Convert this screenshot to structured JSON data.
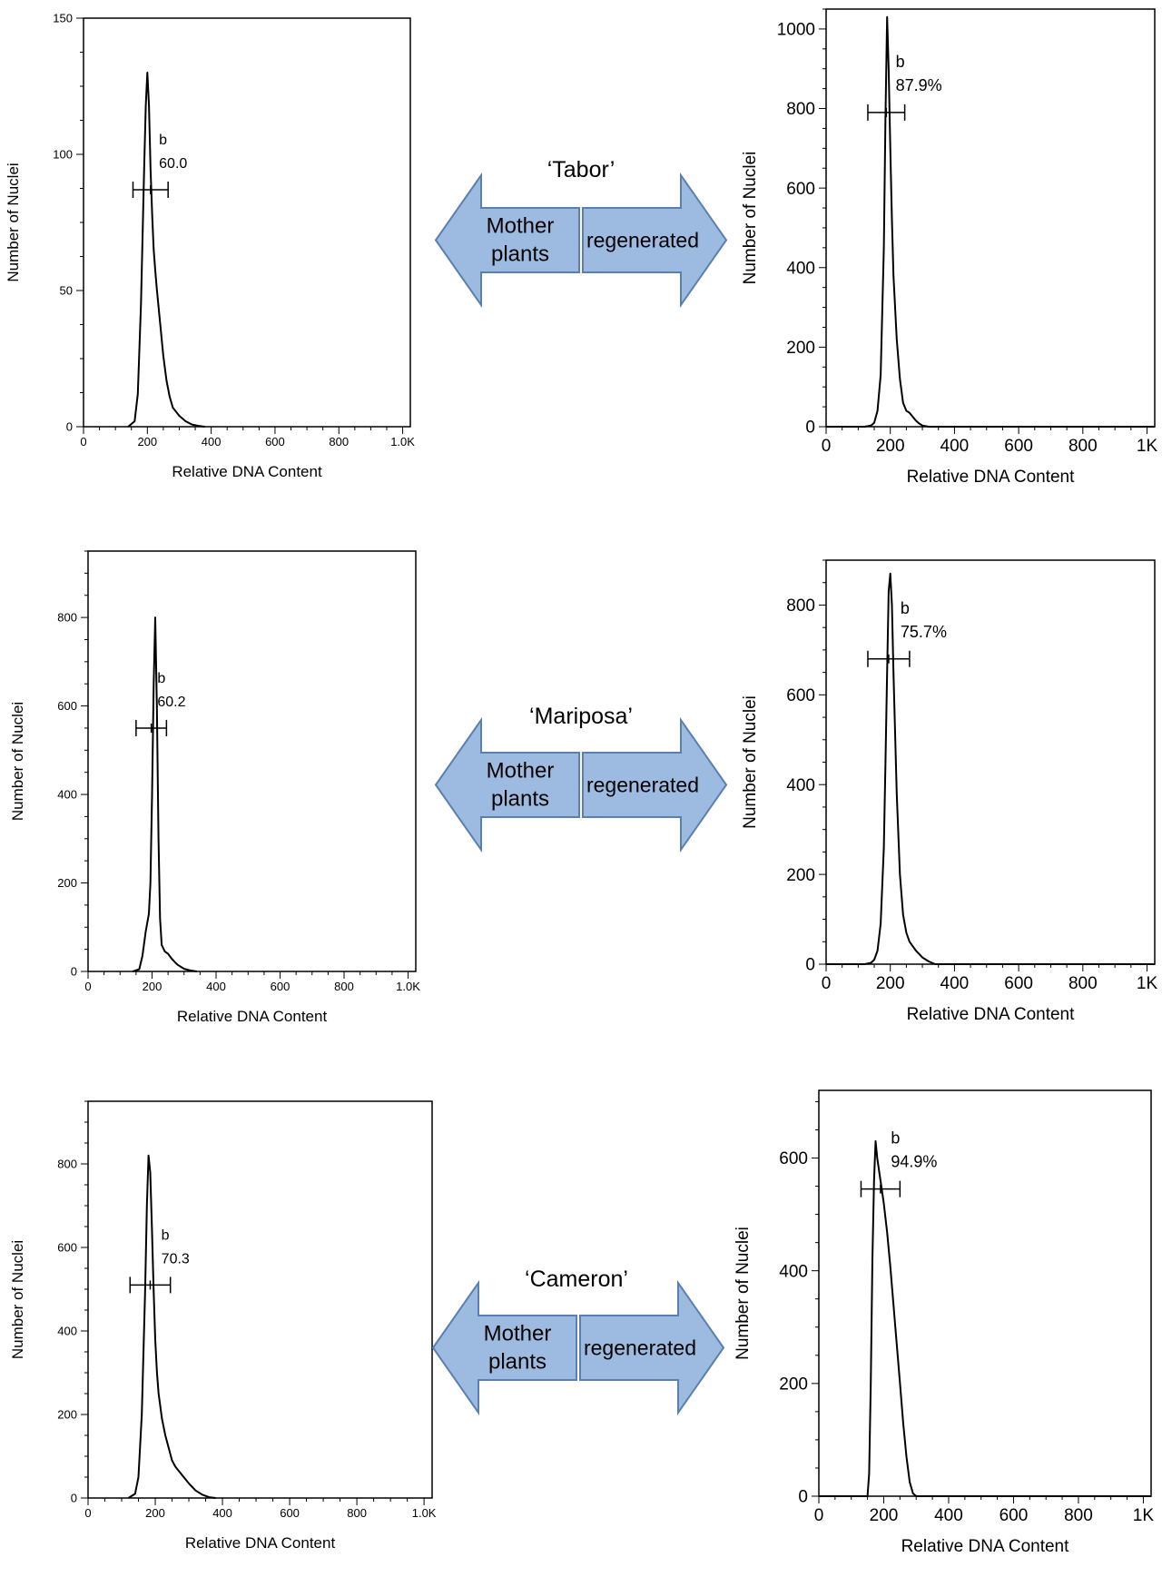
{
  "chart_data": [
    {
      "type": "line",
      "panel": "Tabor mother plants",
      "xlabel": "Relative DNA Content",
      "ylabel": "Number of Nuclei",
      "xlim": [
        0,
        1024
      ],
      "ylim": [
        0,
        150
      ],
      "xticks": [
        0,
        200,
        400,
        600,
        800,
        1000
      ],
      "xtick_labels": [
        "0",
        "200",
        "400",
        "600",
        "800",
        "1.0K"
      ],
      "yticks": [
        0,
        50,
        100,
        150
      ],
      "ytick_labels": [
        "0",
        "50",
        "100",
        "150"
      ],
      "series": [
        {
          "x": [
            140,
            160,
            170,
            180,
            190,
            195,
            200,
            205,
            210,
            215,
            220,
            225,
            230,
            240,
            250,
            260,
            270,
            280,
            300,
            320,
            340,
            360,
            380
          ],
          "y": [
            0,
            2,
            12,
            45,
            95,
            118,
            130,
            118,
            95,
            78,
            65,
            57,
            50,
            38,
            26,
            17,
            11,
            7,
            4,
            2,
            0.8,
            0.3,
            0
          ]
        }
      ],
      "gate": {
        "label": "b",
        "value": "60.0",
        "x_range": [
          155,
          265
        ],
        "y": 87
      }
    },
    {
      "type": "line",
      "panel": "Tabor regenerated",
      "xlabel": "Relative DNA Content",
      "ylabel": "Number of Nuclei",
      "xlim": [
        0,
        1024
      ],
      "ylim": [
        0,
        1050
      ],
      "xticks": [
        0,
        200,
        400,
        600,
        800,
        1000
      ],
      "xtick_labels": [
        "0",
        "200",
        "400",
        "600",
        "800",
        "1K"
      ],
      "yticks": [
        0,
        200,
        400,
        600,
        800,
        1000
      ],
      "ytick_labels": [
        "0",
        "200",
        "400",
        "600",
        "800",
        "1000"
      ],
      "series": [
        {
          "x": [
            0,
            120,
            140,
            150,
            160,
            170,
            180,
            185,
            190,
            195,
            200,
            205,
            210,
            220,
            230,
            240,
            250,
            260,
            270,
            280,
            290,
            300,
            320,
            1024
          ],
          "y": [
            0,
            0,
            3,
            10,
            40,
            130,
            450,
            780,
            1030,
            900,
            700,
            520,
            380,
            220,
            120,
            60,
            40,
            35,
            25,
            15,
            8,
            3,
            0,
            0
          ]
        }
      ],
      "gate": {
        "label": "b",
        "value": "87.9%",
        "x_range": [
          130,
          245
        ],
        "y": 790
      }
    },
    {
      "type": "line",
      "panel": "Mariposa mother plants",
      "xlabel": "Relative DNA Content",
      "ylabel": "Number of Nuclei",
      "xlim": [
        0,
        1024
      ],
      "ylim": [
        0,
        950
      ],
      "xticks": [
        0,
        200,
        400,
        600,
        800,
        1000
      ],
      "xtick_labels": [
        "0",
        "200",
        "400",
        "600",
        "800",
        "1.0K"
      ],
      "yticks": [
        0,
        200,
        400,
        600,
        800
      ],
      "ytick_labels": [
        "0",
        "200",
        "400",
        "600",
        "800"
      ],
      "series": [
        {
          "x": [
            140,
            160,
            170,
            180,
            190,
            195,
            200,
            205,
            210,
            215,
            220,
            225,
            230,
            240,
            250,
            260,
            270,
            280,
            300,
            320,
            340
          ],
          "y": [
            0,
            5,
            35,
            90,
            130,
            200,
            400,
            650,
            800,
            600,
            300,
            120,
            60,
            45,
            40,
            30,
            22,
            15,
            6,
            2,
            0
          ]
        }
      ],
      "gate": {
        "label": "b",
        "value": "60.2",
        "x_range": [
          150,
          245
        ],
        "y": 550
      }
    },
    {
      "type": "line",
      "panel": "Mariposa regenerated",
      "xlabel": "Relative DNA Content",
      "ylabel": "Number of Nuclei",
      "xlim": [
        0,
        1024
      ],
      "ylim": [
        0,
        900
      ],
      "xticks": [
        0,
        200,
        400,
        600,
        800,
        1000
      ],
      "xtick_labels": [
        "0",
        "200",
        "400",
        "600",
        "800",
        "1K"
      ],
      "yticks": [
        0,
        200,
        400,
        600,
        800
      ],
      "ytick_labels": [
        "0",
        "200",
        "400",
        "600",
        "800"
      ],
      "series": [
        {
          "x": [
            0,
            120,
            140,
            150,
            160,
            170,
            180,
            185,
            190,
            195,
            200,
            205,
            210,
            220,
            230,
            240,
            250,
            260,
            280,
            300,
            320,
            340,
            1024
          ],
          "y": [
            0,
            0,
            3,
            10,
            30,
            90,
            260,
            450,
            650,
            830,
            870,
            800,
            650,
            380,
            200,
            110,
            70,
            50,
            30,
            15,
            6,
            0,
            0
          ]
        }
      ],
      "gate": {
        "label": "b",
        "value": "75.7%",
        "x_range": [
          130,
          260
        ],
        "y": 680
      }
    },
    {
      "type": "line",
      "panel": "Cameron mother plants",
      "xlabel": "Relative DNA Content",
      "ylabel": "Number of Nuclei",
      "xlim": [
        0,
        1024
      ],
      "ylim": [
        0,
        950
      ],
      "xticks": [
        0,
        200,
        400,
        600,
        800,
        1000
      ],
      "xtick_labels": [
        "0",
        "200",
        "400",
        "600",
        "800",
        "1.0K"
      ],
      "yticks": [
        0,
        200,
        400,
        600,
        800
      ],
      "ytick_labels": [
        "0",
        "200",
        "400",
        "600",
        "800"
      ],
      "series": [
        {
          "x": [
            120,
            140,
            150,
            160,
            170,
            175,
            180,
            185,
            190,
            195,
            200,
            205,
            210,
            220,
            230,
            240,
            250,
            260,
            280,
            300,
            320,
            340,
            360,
            380
          ],
          "y": [
            0,
            10,
            50,
            200,
            500,
            700,
            820,
            780,
            650,
            500,
            380,
            300,
            250,
            190,
            150,
            120,
            90,
            75,
            55,
            35,
            18,
            8,
            2,
            0
          ]
        }
      ],
      "gate": {
        "label": "b",
        "value": "70.3",
        "x_range": [
          125,
          245
        ],
        "y": 510
      }
    },
    {
      "type": "line",
      "panel": "Cameron regenerated",
      "xlabel": "Relative DNA Content",
      "ylabel": "Number of Nuclei",
      "xlim": [
        0,
        1024
      ],
      "ylim": [
        0,
        720
      ],
      "xticks": [
        0,
        200,
        400,
        600,
        800,
        1000
      ],
      "xtick_labels": [
        "0",
        "200",
        "400",
        "600",
        "800",
        "1K"
      ],
      "yticks": [
        0,
        200,
        400,
        600
      ],
      "ytick_labels": [
        "0",
        "200",
        "400",
        "600"
      ],
      "series": [
        {
          "x": [
            0,
            150,
            155,
            160,
            165,
            170,
            175,
            180,
            190,
            200,
            210,
            220,
            230,
            240,
            250,
            260,
            270,
            280,
            290,
            300,
            1024
          ],
          "y": [
            0,
            0,
            40,
            200,
            420,
            560,
            630,
            600,
            560,
            520,
            470,
            410,
            340,
            270,
            200,
            130,
            70,
            25,
            5,
            0,
            0
          ]
        }
      ],
      "gate": {
        "label": "b",
        "value": "94.9%",
        "x_range": [
          130,
          250
        ],
        "y": 545
      }
    }
  ],
  "connectors": [
    {
      "cultivar": "‘Tabor’",
      "left_label_line1": "Mother",
      "left_label_line2": "plants",
      "right_label": "regenerated"
    },
    {
      "cultivar": "‘Mariposa’",
      "left_label_line1": "Mother",
      "left_label_line2": "plants",
      "right_label": "regenerated"
    },
    {
      "cultivar": "‘Cameron’",
      "left_label_line1": "Mother",
      "left_label_line2": "plants",
      "right_label": "regenerated"
    }
  ],
  "colors": {
    "arrow_fill": "#9dbbe0",
    "arrow_stroke": "#5b7fae",
    "line": "#000000"
  }
}
